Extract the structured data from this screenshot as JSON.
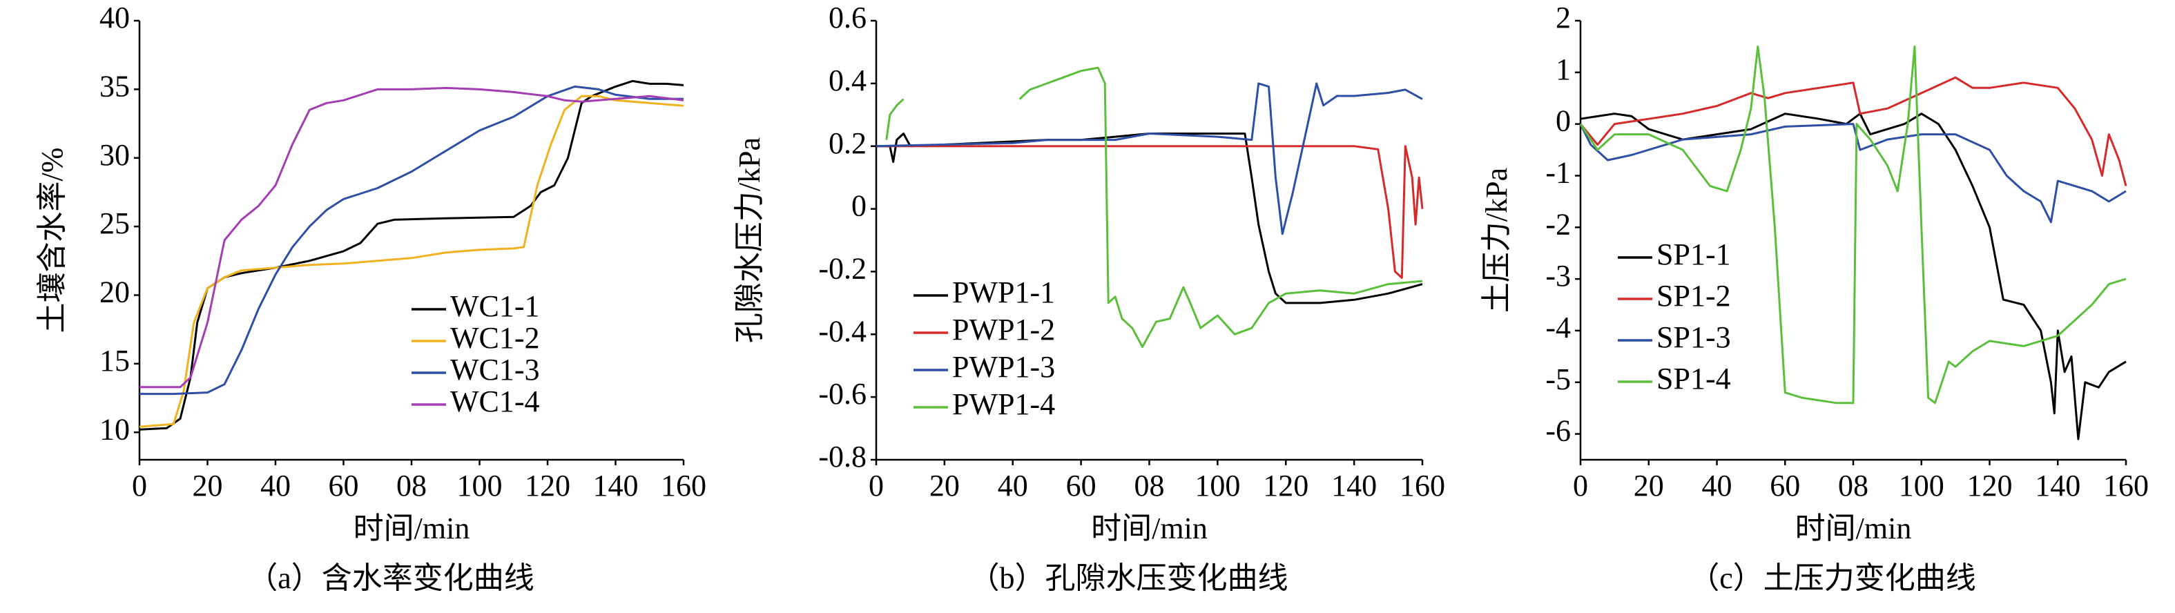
{
  "chart_data": [
    {
      "type": "line",
      "caption": "（a）含水率变化曲线",
      "xlabel": "时间/min",
      "ylabel": "土壤含水率/%",
      "xlim": [
        0,
        160
      ],
      "ylim": [
        8,
        40
      ],
      "xticks": [
        0,
        20,
        40,
        60,
        {
          "value": 80,
          "label": "08"
        },
        100,
        120,
        140,
        160
      ],
      "yticks": [
        10,
        15,
        20,
        25,
        30,
        35,
        40
      ],
      "series": [
        {
          "name": "WC1-1",
          "color": "#000000",
          "x": [
            0,
            8,
            12,
            15,
            17,
            20,
            25,
            30,
            40,
            50,
            60,
            65,
            70,
            75,
            90,
            110,
            115,
            118,
            122,
            126,
            130,
            133,
            140,
            145,
            150,
            155,
            160
          ],
          "values": [
            10.2,
            10.3,
            11,
            14,
            18,
            20.5,
            21.3,
            21.6,
            22,
            22.5,
            23.2,
            23.8,
            25.2,
            25.5,
            25.6,
            25.7,
            26.5,
            27.5,
            28,
            30,
            34,
            34.5,
            35.2,
            35.6,
            35.4,
            35.4,
            35.3
          ]
        },
        {
          "name": "WC1-2",
          "color": "#f0b21e",
          "x": [
            0,
            10,
            13,
            16,
            20,
            25,
            30,
            40,
            50,
            60,
            80,
            90,
            100,
            110,
            113,
            117,
            121,
            125,
            130,
            135,
            140,
            150,
            160
          ],
          "values": [
            10.4,
            10.6,
            13,
            18,
            20.5,
            21.3,
            21.8,
            22,
            22.2,
            22.3,
            22.7,
            23.1,
            23.3,
            23.4,
            23.5,
            28,
            31,
            33.5,
            34.5,
            34.5,
            34.2,
            34,
            33.8
          ]
        },
        {
          "name": "WC1-3",
          "color": "#2d4fa6",
          "x": [
            0,
            10,
            20,
            25,
            30,
            35,
            40,
            45,
            50,
            55,
            60,
            70,
            80,
            90,
            100,
            110,
            120,
            128,
            135,
            140,
            150,
            160
          ],
          "values": [
            12.8,
            12.8,
            12.9,
            13.5,
            16,
            19,
            21.5,
            23.5,
            25,
            26.2,
            27,
            27.8,
            29,
            30.5,
            32,
            33,
            34.5,
            35.2,
            35,
            34.6,
            34.3,
            34.3
          ]
        },
        {
          "name": "WC1-4",
          "color": "#a43db3",
          "x": [
            0,
            12,
            15,
            20,
            25,
            30,
            35,
            40,
            45,
            50,
            55,
            60,
            70,
            80,
            90,
            100,
            110,
            120,
            125,
            130,
            140,
            150,
            160
          ],
          "values": [
            13.3,
            13.3,
            14,
            18,
            24,
            25.5,
            26.5,
            28,
            31,
            33.5,
            34,
            34.2,
            35,
            35,
            35.1,
            35,
            34.8,
            34.5,
            34.2,
            34.1,
            34.3,
            34.5,
            34.2
          ]
        }
      ]
    },
    {
      "type": "line",
      "caption": "（b）孔隙水压变化曲线",
      "xlabel": "时间/min",
      "ylabel": "孔隙水压力/kPa",
      "xlim": [
        0,
        160
      ],
      "ylim": [
        -0.8,
        0.6
      ],
      "xticks": [
        0,
        20,
        40,
        60,
        {
          "value": 80,
          "label": "08"
        },
        100,
        120,
        140,
        160
      ],
      "yticks": [
        -0.8,
        -0.6,
        -0.4,
        -0.2,
        0,
        0.2,
        0.4,
        0.6
      ],
      "series": [
        {
          "name": "PWP1-1",
          "color": "#000000",
          "x": [
            0,
            4,
            5,
            6,
            8,
            10,
            30,
            50,
            60,
            70,
            80,
            100,
            108,
            110,
            112,
            115,
            117,
            120,
            130,
            140,
            150,
            160
          ],
          "values": [
            0.2,
            0.2,
            0.15,
            0.22,
            0.24,
            0.2,
            0.21,
            0.22,
            0.22,
            0.23,
            0.24,
            0.24,
            0.24,
            0.1,
            -0.05,
            -0.2,
            -0.27,
            -0.3,
            -0.3,
            -0.29,
            -0.27,
            -0.24
          ]
        },
        {
          "name": "PWP1-2",
          "color": "#d62a2a",
          "x": [
            0,
            50,
            100,
            140,
            147,
            150,
            152,
            154,
            155,
            157,
            158,
            159,
            160
          ],
          "values": [
            0.2,
            0.2,
            0.2,
            0.2,
            0.19,
            0,
            -0.2,
            -0.22,
            0.2,
            0.1,
            -0.05,
            0.1,
            0
          ]
        },
        {
          "name": "PWP1-3",
          "color": "#2d4fa6",
          "x": [
            0,
            40,
            50,
            60,
            70,
            80,
            100,
            110,
            112,
            115,
            117,
            119,
            122,
            125,
            127,
            129,
            131,
            135,
            140,
            150,
            155,
            160
          ],
          "values": [
            0.2,
            0.21,
            0.22,
            0.22,
            0.22,
            0.24,
            0.23,
            0.22,
            0.4,
            0.39,
            0.1,
            -0.08,
            0.05,
            0.2,
            0.3,
            0.4,
            0.33,
            0.36,
            0.36,
            0.37,
            0.38,
            0.35
          ]
        },
        {
          "name": "PWP1-4",
          "color": "#5cbf3c",
          "x": [
            3,
            4,
            6,
            8,
            20,
            42,
            45,
            50,
            55,
            60,
            65,
            67,
            68,
            70,
            72,
            75,
            78,
            82,
            86,
            88,
            90,
            92,
            95,
            100,
            105,
            110,
            115,
            120,
            130,
            140,
            150,
            160
          ],
          "values": [
            0.22,
            0.3,
            0.33,
            0.35,
            null,
            0.35,
            0.38,
            0.4,
            0.42,
            0.44,
            0.45,
            0.4,
            -0.3,
            -0.28,
            -0.35,
            -0.38,
            -0.44,
            -0.36,
            -0.35,
            -0.3,
            -0.25,
            -0.3,
            -0.38,
            -0.34,
            -0.4,
            -0.38,
            -0.3,
            -0.27,
            -0.26,
            -0.27,
            -0.24,
            -0.23
          ]
        }
      ]
    },
    {
      "type": "line",
      "caption": "（c）土压力变化曲线",
      "xlabel": "时间/min",
      "ylabel": "土压力/kPa",
      "xlim": [
        0,
        160
      ],
      "ylim": [
        -6.5,
        2
      ],
      "xticks": [
        0,
        20,
        40,
        60,
        {
          "value": 80,
          "label": "08"
        },
        100,
        120,
        140,
        160
      ],
      "yticks": [
        -6,
        -5,
        -4,
        -3,
        -2,
        -1,
        0,
        1,
        2
      ],
      "series": [
        {
          "name": "SP1-1",
          "color": "#000000",
          "x": [
            0,
            5,
            10,
            15,
            20,
            30,
            40,
            50,
            60,
            70,
            78,
            82,
            85,
            90,
            95,
            100,
            105,
            110,
            115,
            120,
            124,
            130,
            135,
            138,
            139,
            140,
            142,
            144,
            146,
            148,
            152,
            155,
            160
          ],
          "values": [
            0.1,
            0.15,
            0.2,
            0.15,
            -0.1,
            -0.3,
            -0.2,
            -0.1,
            0.2,
            0.1,
            0,
            0.2,
            -0.2,
            -0.1,
            0,
            0.2,
            0,
            -0.5,
            -1.2,
            -2,
            -3.4,
            -3.5,
            -4,
            -5,
            -5.6,
            -4,
            -4.8,
            -4.5,
            -6.1,
            -5,
            -5.1,
            -4.8,
            -4.6
          ]
        },
        {
          "name": "SP1-2",
          "color": "#d62a2a",
          "x": [
            0,
            5,
            10,
            20,
            30,
            40,
            50,
            55,
            60,
            70,
            80,
            82,
            90,
            100,
            110,
            115,
            120,
            130,
            140,
            145,
            150,
            153,
            155,
            158,
            160
          ],
          "values": [
            0,
            -0.4,
            0,
            0.1,
            0.2,
            0.35,
            0.6,
            0.5,
            0.6,
            0.7,
            0.8,
            0.2,
            0.3,
            0.6,
            0.9,
            0.7,
            0.7,
            0.8,
            0.7,
            0.3,
            -0.3,
            -1,
            -0.2,
            -0.7,
            -1.2
          ]
        },
        {
          "name": "SP1-3",
          "color": "#2d4fa6",
          "x": [
            0,
            3,
            8,
            15,
            30,
            50,
            60,
            80,
            82,
            90,
            100,
            110,
            120,
            125,
            130,
            135,
            138,
            140,
            145,
            150,
            155,
            160
          ],
          "values": [
            0,
            -0.4,
            -0.7,
            -0.6,
            -0.3,
            -0.2,
            -0.05,
            0,
            -0.5,
            -0.3,
            -0.2,
            -0.2,
            -0.5,
            -1,
            -1.3,
            -1.5,
            -1.9,
            -1.1,
            -1.2,
            -1.3,
            -1.5,
            -1.3
          ]
        },
        {
          "name": "SP1-4",
          "color": "#5cbf3c",
          "x": [
            0,
            5,
            10,
            20,
            30,
            38,
            43,
            47,
            50,
            52,
            54,
            57,
            60,
            65,
            70,
            75,
            80,
            81,
            85,
            90,
            93,
            96,
            98,
            100,
            102,
            104,
            108,
            110,
            115,
            120,
            130,
            140,
            150,
            155,
            160
          ],
          "values": [
            0,
            -0.5,
            -0.2,
            -0.2,
            -0.5,
            -1.2,
            -1.3,
            -0.5,
            0.3,
            1.5,
            0.5,
            -2,
            -5.2,
            -5.3,
            -5.35,
            -5.4,
            -5.4,
            0,
            -0.3,
            -0.8,
            -1.3,
            0,
            1.5,
            -2,
            -5.3,
            -5.4,
            -4.6,
            -4.7,
            -4.4,
            -4.2,
            -4.3,
            -4.1,
            -3.5,
            -3.1,
            -3
          ]
        }
      ]
    }
  ]
}
